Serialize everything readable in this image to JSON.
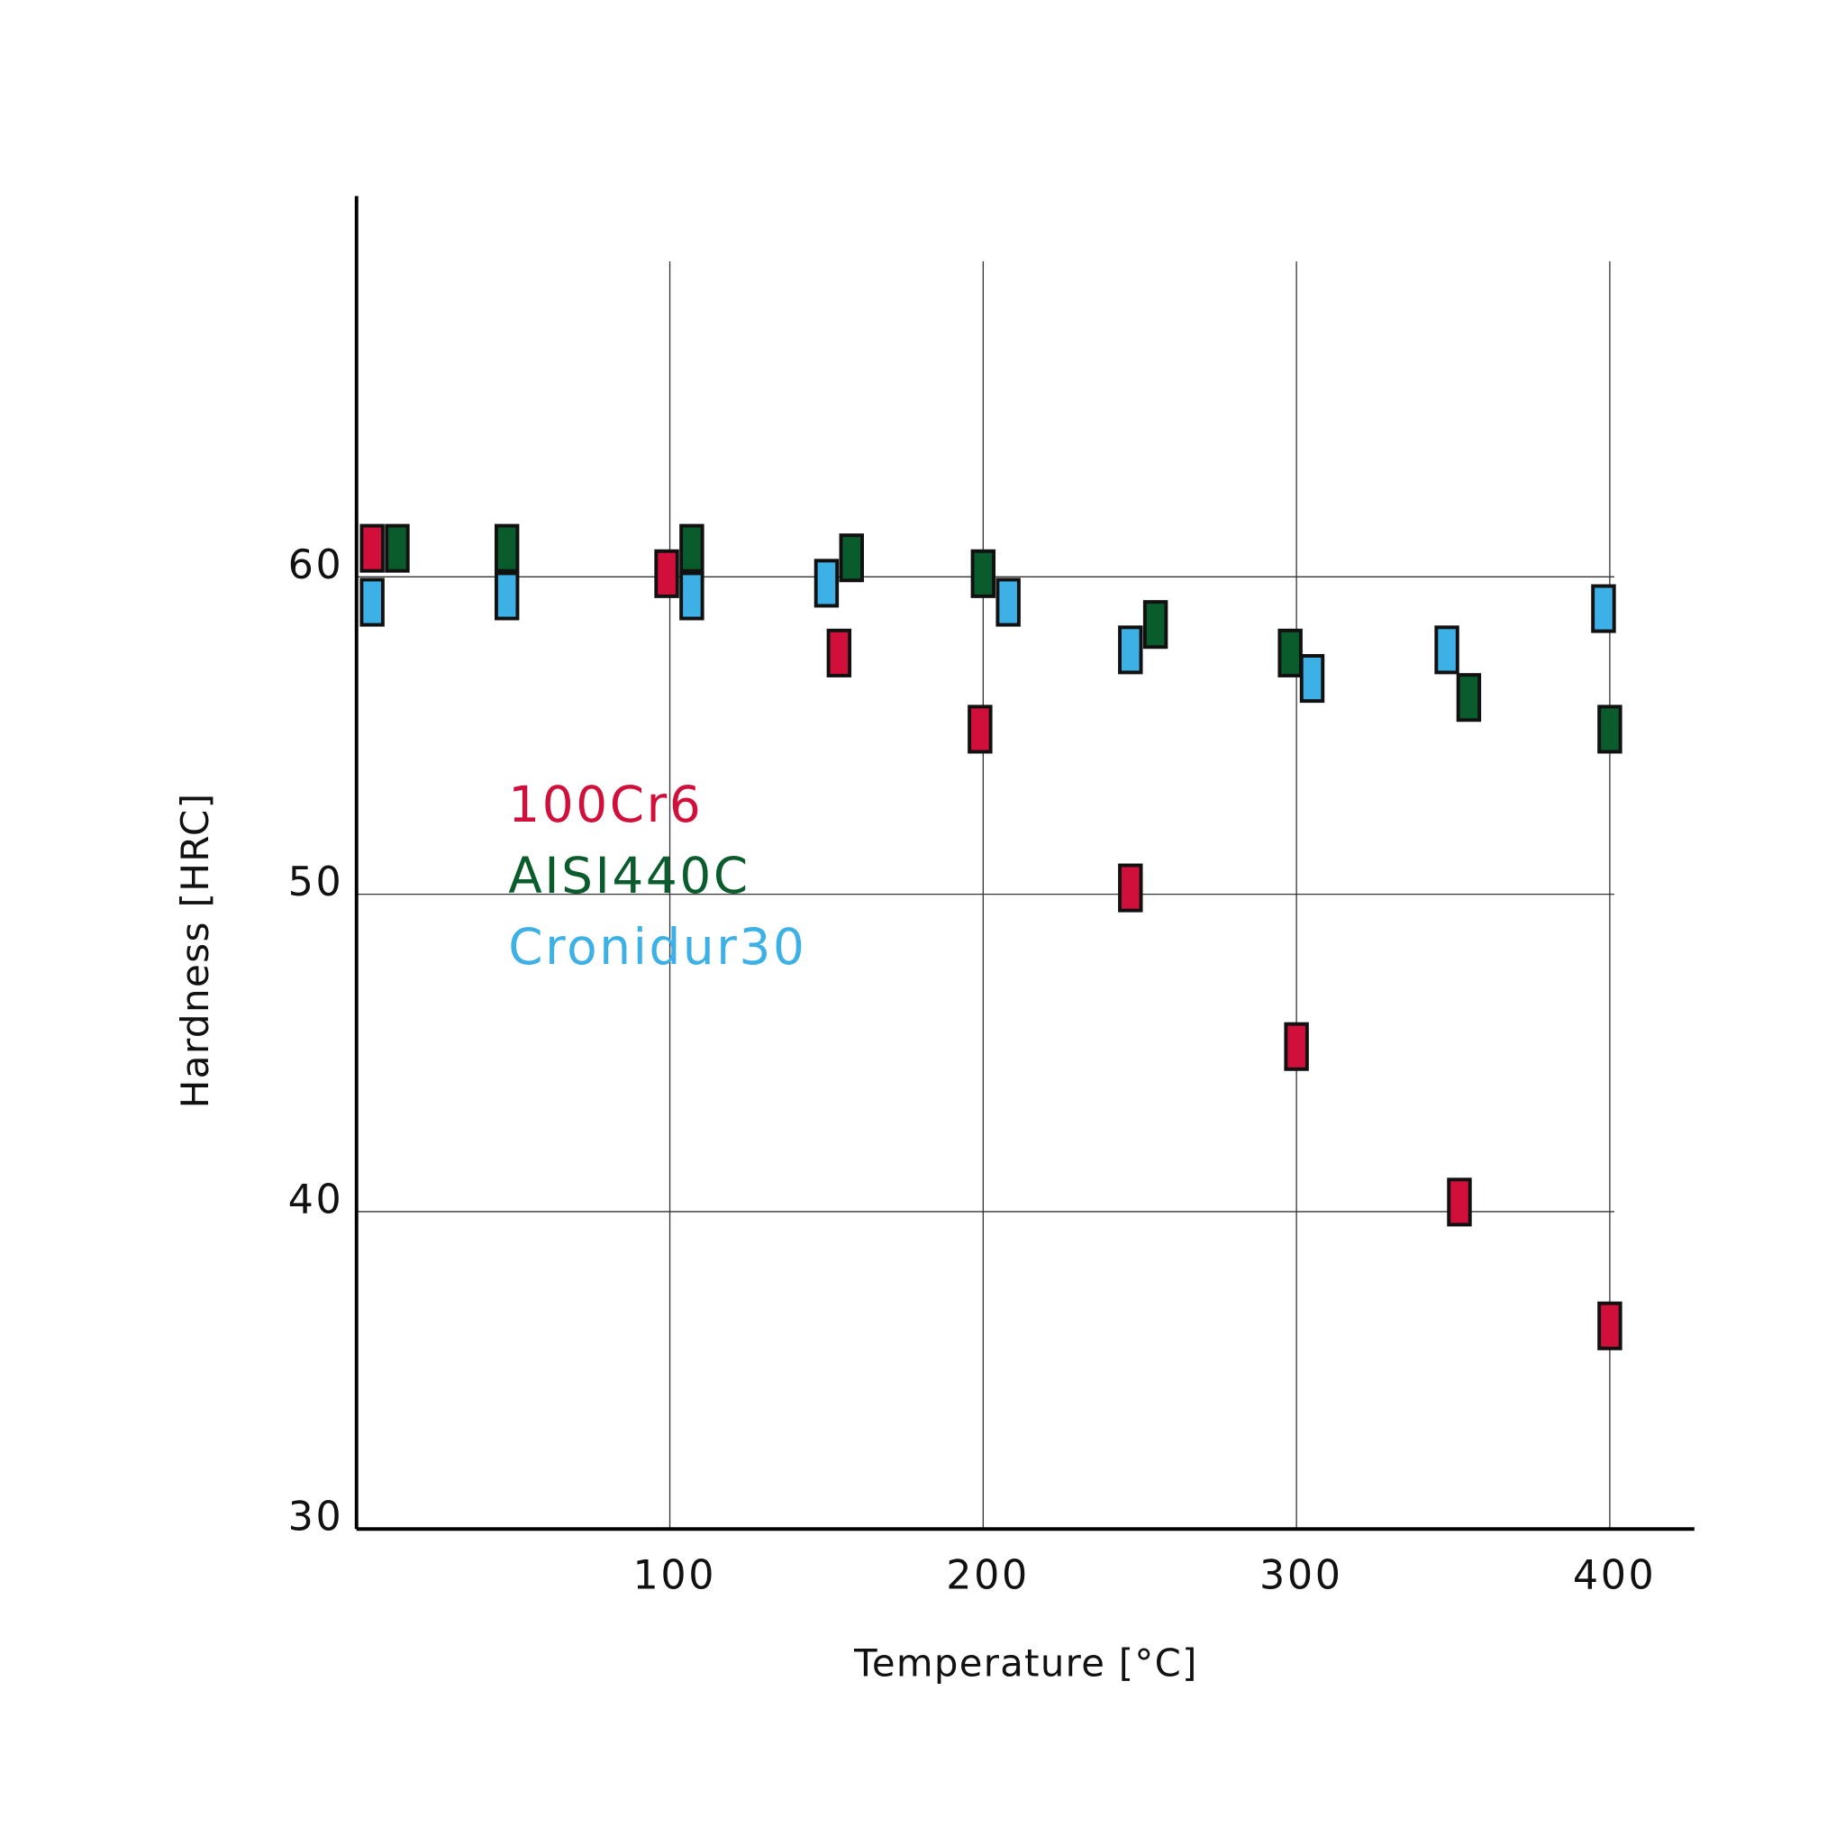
{
  "chart_data": {
    "type": "scatter",
    "x_label": "Temperature [°C]",
    "y_label": "Hardness [HRC]",
    "xlim": [
      0,
      427
    ],
    "xticks": [
      100,
      200,
      300,
      400
    ],
    "ylim": [
      30,
      72
    ],
    "yticks": [
      30,
      40,
      50,
      60
    ],
    "grid": true,
    "legend": "left",
    "series": [
      {
        "name": "100Cr6",
        "color": "#d0103a",
        "x": [
          5,
          99,
          154,
          199,
          247,
          300,
          352,
          400
        ],
        "values": [
          60.9,
          60.1,
          57.6,
          55.2,
          50.2,
          45.2,
          40.3,
          36.4
        ]
      },
      {
        "name": "AISI440C",
        "color": "#0b5c2c",
        "x": [
          13,
          48,
          107,
          158,
          200,
          255,
          298,
          355,
          400
        ],
        "values": [
          60.9,
          60.9,
          60.9,
          60.6,
          60.1,
          58.5,
          57.6,
          56.2,
          55.2
        ]
      },
      {
        "name": "Cronidur30",
        "color": "#3db0e6",
        "x": [
          5,
          48,
          107,
          150,
          208,
          247,
          305,
          348,
          398
        ],
        "values": [
          59.2,
          59.4,
          59.4,
          59.8,
          59.2,
          57.7,
          56.8,
          57.7,
          59.0
        ]
      }
    ]
  }
}
